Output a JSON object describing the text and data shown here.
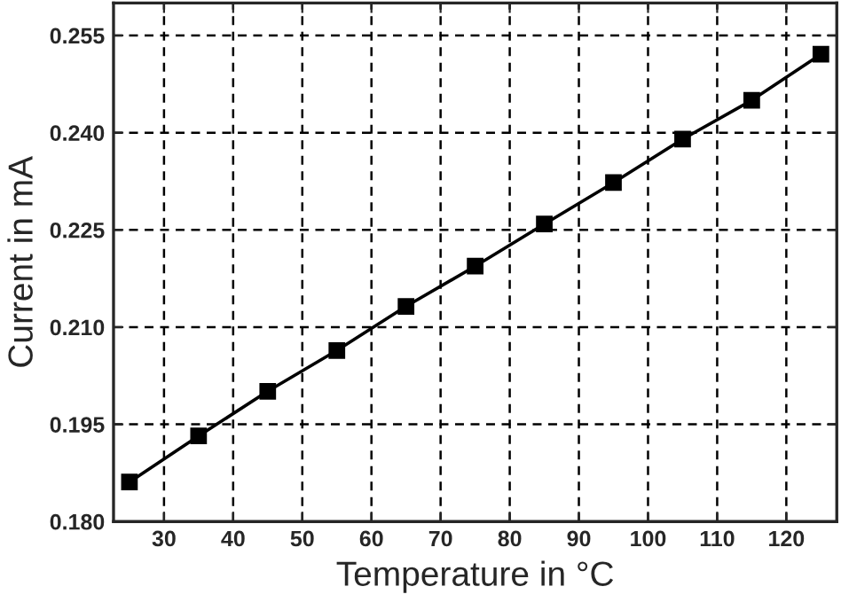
{
  "chart_data": {
    "type": "line",
    "xlabel": "Temperature in °C",
    "ylabel": "Current in mA",
    "x": [
      25,
      35,
      45,
      55,
      65,
      75,
      85,
      95,
      105,
      115,
      125
    ],
    "series": [
      {
        "color": "#000000",
        "values": [
          0.1861,
          0.1932,
          0.2001,
          0.2064,
          0.2132,
          0.2194,
          0.2259,
          0.2323,
          0.239,
          0.245,
          0.2521
        ]
      }
    ],
    "xlim": [
      22.7,
      127.3
    ],
    "ylim": [
      0.18,
      0.26
    ],
    "xticks": [
      30,
      40,
      50,
      60,
      70,
      80,
      90,
      100,
      110,
      120
    ],
    "yticks": [
      {
        "value": 0.18,
        "label": "0.180"
      },
      {
        "value": 0.195,
        "label": "0.195"
      },
      {
        "value": 0.21,
        "label": "0.210"
      },
      {
        "value": 0.225,
        "label": "0.225"
      },
      {
        "value": 0.24,
        "label": "0.240"
      },
      {
        "value": 0.255,
        "label": "0.255"
      }
    ],
    "grid": true,
    "marker": "square",
    "line_style": "solid"
  }
}
